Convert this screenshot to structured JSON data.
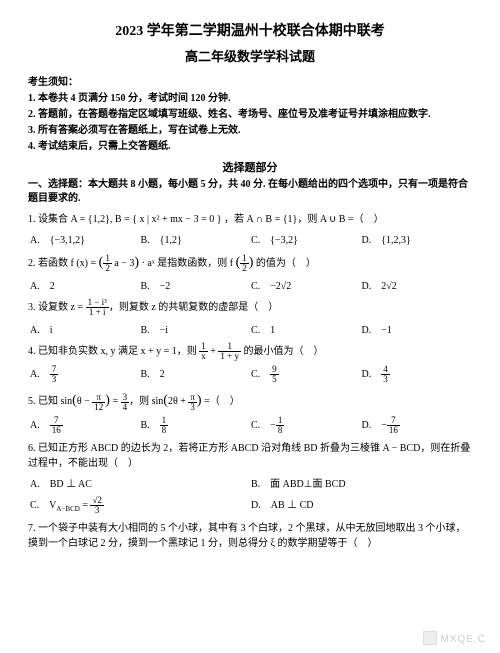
{
  "title1": "2023 学年第二学期温州十校联合体期中联考",
  "title2": "高二年级数学学科试题",
  "notice_header": "考生须知：",
  "notices": [
    "1. 本卷共 4 页满分 150 分，考试时间 120 分钟.",
    "2. 答题前，在答题卷指定区域填写班级、姓名、考场号、座位号及准考证号并填涂相应数字.",
    "3. 所有答案必须写在答题纸上，写在试卷上无效.",
    "4. 考试结束后，只需上交答题纸."
  ],
  "section_header": "选择题部分",
  "part1_instruction": "一、选择题：本大题共 8 小题，每小题 5 分，共 40 分. 在每小题给出的四个选项中，只有一项是符合题目要求的.",
  "q1": {
    "text": "1. 设集合 A = {1,2}, B = { x | x² + mx − 3 = 0 } ，若 A ∩ B = {1}，则 A ∪ B =（　）",
    "opts": [
      "A.　{−3,1,2}",
      "B.　{1,2}",
      "C.　{−3,2}",
      "D.　{1,2,3}"
    ]
  },
  "q2": {
    "text_pre": "2. 若函数 f (x) = ",
    "text_mid": " · aˣ 是指数函数，则 f ",
    "text_post": " 的值为（　）",
    "opts": [
      "A.　2",
      "B.　−2",
      "C.　−2√2",
      "D.　2√2"
    ]
  },
  "q3": {
    "text_pre": "3. 设复数 z = ",
    "text_post": "，则复数 z 的共轭复数的虚部是（　）",
    "opts": [
      "A.　i",
      "B.　−i",
      "C.　1",
      "D.　−1"
    ]
  },
  "q4": {
    "text_pre": "4. 已知非负实数 x, y 满足 x + y = 1，则 ",
    "text_post": " 的最小值为（　）",
    "opts_frac": [
      {
        "label": "A.　",
        "num": "7",
        "den": "3"
      },
      {
        "label": "B.　2",
        "num": "",
        "den": ""
      },
      {
        "label": "C.　",
        "num": "9",
        "den": "5"
      },
      {
        "label": "D.　",
        "num": "4",
        "den": "3"
      }
    ]
  },
  "q5": {
    "text_pre": "5. 已知 sin",
    "text_mid": " = ",
    "text_mid2": "，则 sin",
    "text_post": " =（　）",
    "opts_frac": [
      {
        "label": "A.　",
        "num": "7",
        "den": "16"
      },
      {
        "label": "B.　",
        "num": "1",
        "den": "8"
      },
      {
        "label": "C.　−",
        "num": "1",
        "den": "8"
      },
      {
        "label": "D.　−",
        "num": "7",
        "den": "16"
      }
    ]
  },
  "q6": {
    "text": "6. 已知正方形 ABCD 的边长为 2，若将正方形 ABCD 沿对角线 BD 折叠为三棱锥 A − BCD，则在折叠过程中，不能出现（　）",
    "opts": [
      "A.　BD ⊥ AC",
      "B.　面 ABD⊥面 BCD",
      "",
      "D.　AB ⊥ CD"
    ],
    "optC_pre": "C.　V",
    "optC_sub": "A−BCD",
    "optC_mid": " = "
  },
  "q7": {
    "text": "7. 一个袋子中装有大小相同的 5 个小球，其中有 3 个白球，2 个黑球，从中无放回地取出 3 个小球，摸到一个白球记 2 分，摸到一个黑球记 1 分，则总得分 ξ 的数学期望等于（　）"
  },
  "watermark": "MXQE.C"
}
